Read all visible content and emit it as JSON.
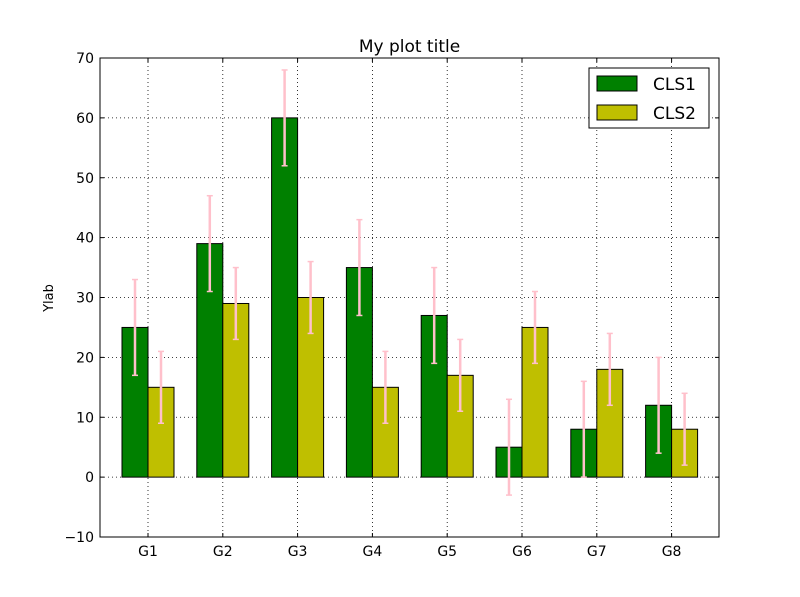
{
  "chart_data": {
    "type": "bar",
    "title": "My plot title",
    "xlabel": "",
    "ylabel": "Ylab",
    "ylim": [
      -10,
      70
    ],
    "yticks": [
      -10,
      0,
      10,
      20,
      30,
      40,
      50,
      60,
      70
    ],
    "grid": true,
    "legend_position": "upper right",
    "categories": [
      "G1",
      "G2",
      "G3",
      "G4",
      "G5",
      "G6",
      "G7",
      "G8"
    ],
    "series": [
      {
        "name": "CLS1",
        "color": "#008000",
        "values": [
          25,
          39,
          60,
          35,
          27,
          5,
          8,
          12
        ],
        "errors": [
          8,
          8,
          8,
          8,
          8,
          8,
          8,
          8
        ]
      },
      {
        "name": "CLS2",
        "color": "#bfbf00",
        "values": [
          15,
          29,
          30,
          15,
          17,
          25,
          18,
          8
        ],
        "errors": [
          6,
          6,
          6,
          6,
          6,
          6,
          6,
          6
        ]
      }
    ],
    "error_bar_color": "#ffc0cb"
  }
}
